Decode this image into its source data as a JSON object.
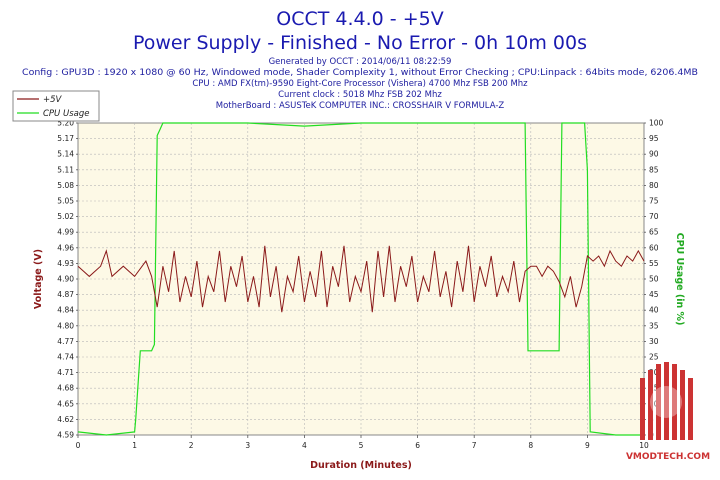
{
  "header": {
    "title": "OCCT 4.4.0 - +5V",
    "subtitle": "Power Supply - Finished - No Error - 0h 10m 00s",
    "info_lines": [
      "Generated by OCCT : 2014/06/11 08:22:59",
      "Config : GPU3D : 1920 x 1080 @ 60 Hz, Windowed mode, Shader Complexity 1, without Error Checking ; CPU:Linpack : 64bits mode, 6206.4MB",
      "CPU : AMD FX(tm)-9590 Eight-Core Processor (Vishera) 4700 Mhz FSB 200 Mhz",
      "Current clock : 5018 Mhz FSB 202 Mhz",
      "MotherBoard : ASUSTeK COMPUTER INC.: CROSSHAIR V FORMULA-Z"
    ]
  },
  "watermark": {
    "text": "VMODTECH.COM"
  },
  "colors": {
    "voltage": "#8b1a1a",
    "cpu": "#22dd22",
    "plot_bg": "#fdf9e6",
    "grid": "#b8b8b8",
    "title": "#1a1ab0"
  },
  "chart_data": {
    "type": "line",
    "title": "OCCT 4.4.0 - +5V",
    "xlabel": "Duration (Minutes)",
    "ylabel": "Voltage (V)",
    "y2label": "CPU Usage (in %)",
    "xlim": [
      0,
      10
    ],
    "ylim": [
      4.59,
      5.2
    ],
    "y2lim": [
      0,
      100
    ],
    "grid": true,
    "legend_position": "top-left",
    "x_ticks": [
      "0",
      "1",
      "2",
      "3",
      "4",
      "5",
      "6",
      "7",
      "8",
      "9",
      "10"
    ],
    "y_ticks": [
      "4.59",
      "4.62",
      "4.65",
      "4.68",
      "4.71",
      "4.74",
      "4.77",
      "4.80",
      "4.84",
      "4.87",
      "4.90",
      "4.93",
      "4.96",
      "4.99",
      "5.02",
      "5.05",
      "5.08",
      "5.11",
      "5.14",
      "5.17",
      "5.20"
    ],
    "y2_ticks": [
      "0",
      "5",
      "10",
      "15",
      "20",
      "25",
      "30",
      "35",
      "40",
      "45",
      "50",
      "55",
      "60",
      "65",
      "70",
      "75",
      "80",
      "85",
      "90",
      "95",
      "100"
    ],
    "series": [
      {
        "name": "+5V",
        "axis": "left",
        "x": [
          0,
          0.2,
          0.4,
          0.5,
          0.6,
          0.8,
          1.0,
          1.2,
          1.3,
          1.4,
          1.5,
          1.6,
          1.7,
          1.8,
          1.9,
          2.0,
          2.1,
          2.2,
          2.3,
          2.4,
          2.5,
          2.6,
          2.7,
          2.8,
          2.9,
          3.0,
          3.1,
          3.2,
          3.3,
          3.4,
          3.5,
          3.6,
          3.7,
          3.8,
          3.9,
          4.0,
          4.1,
          4.2,
          4.3,
          4.4,
          4.5,
          4.6,
          4.7,
          4.8,
          4.9,
          5.0,
          5.1,
          5.2,
          5.3,
          5.4,
          5.5,
          5.6,
          5.7,
          5.8,
          5.9,
          6.0,
          6.1,
          6.2,
          6.3,
          6.4,
          6.5,
          6.6,
          6.7,
          6.8,
          6.9,
          7.0,
          7.1,
          7.2,
          7.3,
          7.4,
          7.5,
          7.6,
          7.7,
          7.8,
          7.9,
          8.0,
          8.1,
          8.2,
          8.3,
          8.4,
          8.5,
          8.6,
          8.7,
          8.8,
          8.9,
          9.0,
          9.1,
          9.2,
          9.3,
          9.4,
          9.5,
          9.6,
          9.7,
          9.8,
          9.9,
          10.0
        ],
        "values": [
          4.92,
          4.9,
          4.92,
          4.95,
          4.9,
          4.92,
          4.9,
          4.93,
          4.9,
          4.84,
          4.92,
          4.87,
          4.95,
          4.85,
          4.9,
          4.86,
          4.93,
          4.84,
          4.9,
          4.87,
          4.95,
          4.85,
          4.92,
          4.88,
          4.94,
          4.85,
          4.9,
          4.84,
          4.96,
          4.86,
          4.92,
          4.83,
          4.9,
          4.87,
          4.94,
          4.85,
          4.91,
          4.86,
          4.95,
          4.84,
          4.92,
          4.88,
          4.96,
          4.85,
          4.9,
          4.87,
          4.93,
          4.83,
          4.95,
          4.86,
          4.96,
          4.85,
          4.92,
          4.88,
          4.94,
          4.85,
          4.9,
          4.87,
          4.95,
          4.86,
          4.91,
          4.84,
          4.93,
          4.87,
          4.96,
          4.85,
          4.92,
          4.88,
          4.94,
          4.86,
          4.9,
          4.87,
          4.93,
          4.85,
          4.91,
          4.92,
          4.92,
          4.9,
          4.92,
          4.91,
          4.89,
          4.86,
          4.9,
          4.84,
          4.88,
          4.94,
          4.93,
          4.94,
          4.92,
          4.95,
          4.93,
          4.92,
          4.94,
          4.93,
          4.95,
          4.93
        ]
      },
      {
        "name": "CPU Usage",
        "axis": "right",
        "x": [
          0,
          0.5,
          1.0,
          1.02,
          1.1,
          1.3,
          1.35,
          1.4,
          1.45,
          1.5,
          2.0,
          3.0,
          4.0,
          5.0,
          6.0,
          7.0,
          7.9,
          7.95,
          8.0,
          8.5,
          8.55,
          8.6,
          8.95,
          9.0,
          9.05,
          9.5,
          10.0
        ],
        "values": [
          1,
          0,
          1,
          5,
          27,
          27,
          29,
          96,
          98,
          100,
          100,
          100,
          99,
          100,
          100,
          100,
          100,
          27,
          27,
          27,
          100,
          100,
          100,
          85,
          1,
          0,
          0
        ]
      }
    ]
  }
}
